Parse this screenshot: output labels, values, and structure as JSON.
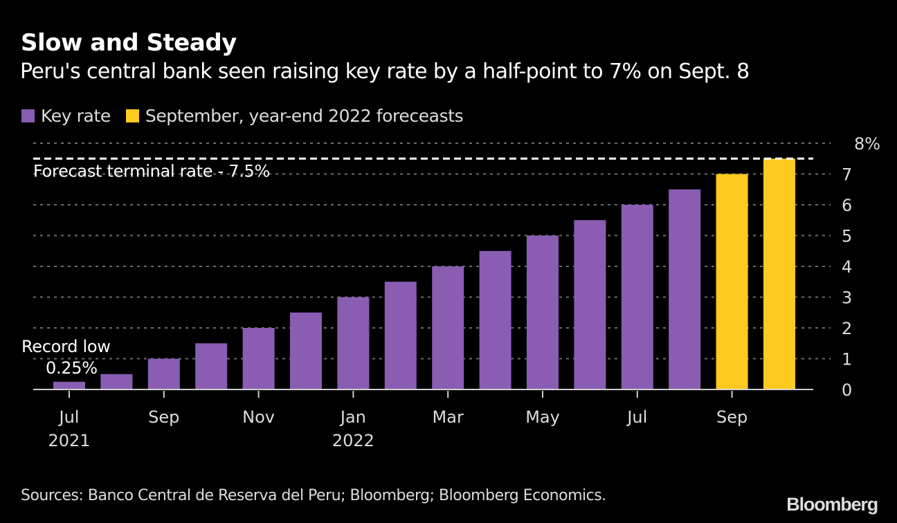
{
  "header": {
    "title": "Slow and Steady",
    "subtitle": "Peru's central bank seen raising key rate by a half-point to 7% on Sept. 8"
  },
  "legend": [
    {
      "label": "Key rate",
      "color": "#8a5db3"
    },
    {
      "label": "September, year-end 2022 foreceasts",
      "color": "#ffca1f"
    }
  ],
  "footer": {
    "sources": "Sources: Banco Central de Reserva del Peru; Bloomberg; Bloomberg Economics.",
    "logo": "Bloomberg"
  },
  "chart_data": {
    "type": "bar",
    "title": "Slow and Steady",
    "subtitle": "Peru's central bank seen raising key rate by a half-point to 7% on Sept. 8",
    "xlabel": "",
    "ylabel": "",
    "ylim": [
      0,
      8
    ],
    "yticks": [
      0,
      1,
      2,
      3,
      4,
      5,
      6,
      7,
      8
    ],
    "ytick_labels": [
      "0",
      "1",
      "2",
      "3",
      "4",
      "5",
      "6",
      "7",
      "8%"
    ],
    "grid": true,
    "y_axis_side": "right",
    "legend_position": "top-left",
    "categories": [
      "Jul 2021",
      "Aug 2021",
      "Sep 2021",
      "Oct 2021",
      "Nov 2021",
      "Dec 2021",
      "Jan 2022",
      "Feb 2022",
      "Mar 2022",
      "Apr 2022",
      "May 2022",
      "Jun 2022",
      "Jul 2022",
      "Aug 2022",
      "Sep 2022",
      "Dec 2022"
    ],
    "x_tick_labels": [
      {
        "index": 0,
        "label": "Jul",
        "sublabel": "2021"
      },
      {
        "index": 2,
        "label": "Sep",
        "sublabel": ""
      },
      {
        "index": 4,
        "label": "Nov",
        "sublabel": ""
      },
      {
        "index": 6,
        "label": "Jan",
        "sublabel": "2022"
      },
      {
        "index": 8,
        "label": "Mar",
        "sublabel": ""
      },
      {
        "index": 10,
        "label": "May",
        "sublabel": ""
      },
      {
        "index": 12,
        "label": "Jul",
        "sublabel": ""
      },
      {
        "index": 14,
        "label": "Sep",
        "sublabel": ""
      }
    ],
    "series": [
      {
        "name": "Key rate",
        "color": "#8a5db3",
        "values": [
          0.25,
          0.5,
          1.0,
          1.5,
          2.0,
          2.5,
          3.0,
          3.5,
          4.0,
          4.5,
          5.0,
          5.5,
          6.0,
          6.5,
          null,
          null
        ]
      },
      {
        "name": "September, year-end 2022 foreceasts",
        "color": "#ffca1f",
        "values": [
          null,
          null,
          null,
          null,
          null,
          null,
          null,
          null,
          null,
          null,
          null,
          null,
          null,
          null,
          7.0,
          7.5
        ]
      }
    ],
    "reference_line": {
      "value": 7.5,
      "label": "Forecast terminal rate - 7.5%",
      "style": "dashed"
    },
    "annotations": [
      {
        "text": "Record low",
        "target_index": 0
      },
      {
        "text": "0.25%",
        "target_index": 0
      }
    ]
  }
}
